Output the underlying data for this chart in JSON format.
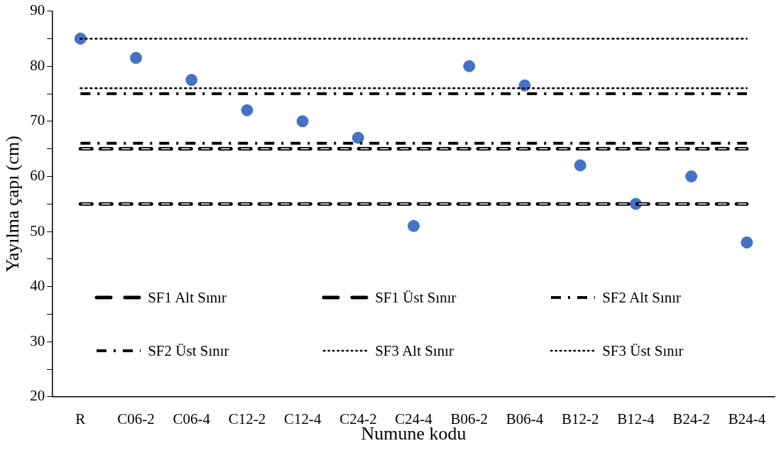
{
  "chart_data": {
    "type": "scatter",
    "xlabel": "Numune kodu",
    "ylabel": "Yayılma çapı (cm)",
    "categories": [
      "R",
      "C06-2",
      "C06-4",
      "C12-2",
      "C12-4",
      "C24-2",
      "C24-4",
      "B06-2",
      "B06-4",
      "B12-2",
      "B12-4",
      "B24-2",
      "B24-4"
    ],
    "series": [
      {
        "marker": "circle",
        "color": "#4472c4",
        "values": [
          85,
          81.5,
          77.5,
          72,
          70,
          67,
          51,
          80,
          76.5,
          62,
          55,
          60,
          48
        ]
      },
      {
        "type": "line",
        "name": "SF1 Alt Sınır",
        "color": "#000000",
        "line_style": "dashed",
        "values": [
          55,
          55,
          55,
          55,
          55,
          55,
          55,
          55,
          55,
          55,
          55,
          55,
          55
        ]
      },
      {
        "type": "line",
        "name": "SF1 Üst Sınır",
        "color": "#000000",
        "line_style": "dashed",
        "values": [
          65,
          65,
          65,
          65,
          65,
          65,
          65,
          65,
          65,
          65,
          65,
          65,
          65
        ]
      },
      {
        "type": "line",
        "name": "SF2 Alt Sınır",
        "color": "#000000",
        "line_style": "dashdot",
        "values": [
          66,
          66,
          66,
          66,
          66,
          66,
          66,
          66,
          66,
          66,
          66,
          66,
          66
        ]
      },
      {
        "type": "line",
        "name": "SF2 Üst Sınır",
        "color": "#000000",
        "line_style": "dashdot",
        "values": [
          75,
          75,
          75,
          75,
          75,
          75,
          75,
          75,
          75,
          75,
          75,
          75,
          75
        ]
      },
      {
        "type": "line",
        "name": "SF3 Alt Sınır",
        "color": "#000000",
        "line_style": "dotted",
        "values": [
          76,
          76,
          76,
          76,
          76,
          76,
          76,
          76,
          76,
          76,
          76,
          76,
          76
        ]
      },
      {
        "type": "line",
        "name": "SF3 Üst Sınır",
        "color": "#000000",
        "line_style": "dotted",
        "values": [
          85,
          85,
          85,
          85,
          85,
          85,
          85,
          85,
          85,
          85,
          85,
          85,
          85
        ]
      }
    ],
    "ylim": [
      20,
      90
    ],
    "yticks": [
      20,
      {
        "value": 25,
        "label": null
      },
      30,
      {
        "value": 35,
        "label": null
      },
      40,
      {
        "value": 45,
        "label": null
      },
      50,
      {
        "value": 55,
        "label": null
      },
      60,
      {
        "value": 65,
        "label": null
      },
      70,
      {
        "value": 75,
        "label": null
      },
      80,
      {
        "value": 85,
        "label": null
      },
      90
    ],
    "grid": false,
    "legend": "bottom",
    "marker": "none"
  }
}
